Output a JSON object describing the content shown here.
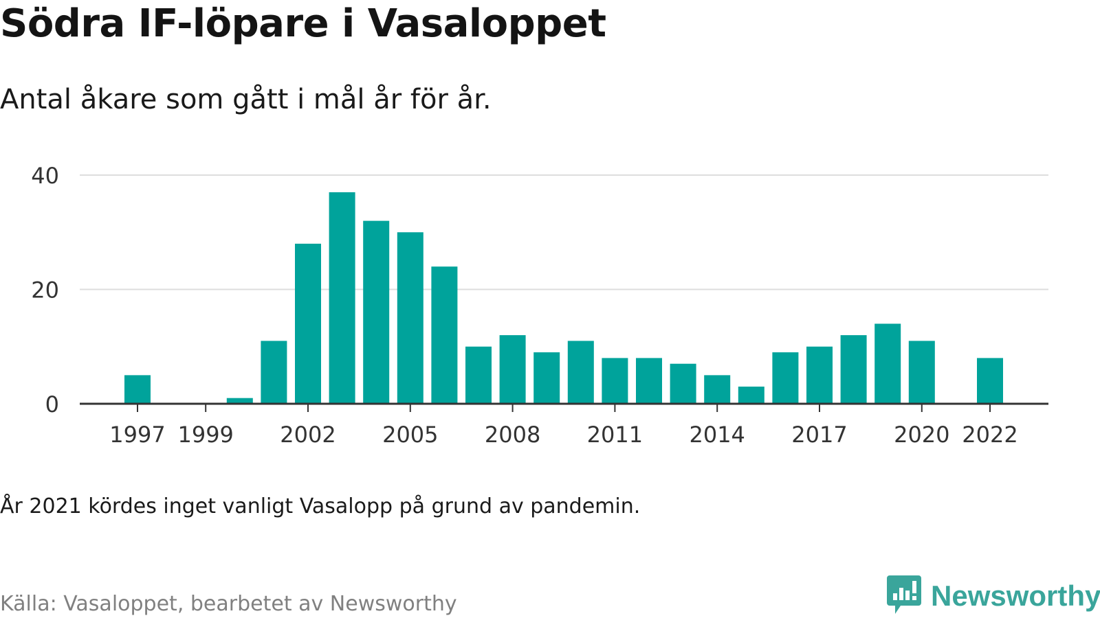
{
  "title": "Södra IF-löpare i Vasaloppet",
  "subtitle": "Antal åkare som gått i mål år för år.",
  "note": "År 2021 kördes inget vanligt Vasalopp på grund av pandemin.",
  "source": "Källa: Vasaloppet, bearbetet av Newsworthy",
  "brand": {
    "name": "Newsworthy",
    "icon": "newsworthy-logo-icon",
    "color": "#3aa59b"
  },
  "colors": {
    "bar": "#00a39b",
    "grid": "#dddddd",
    "axis": "#333333",
    "tick_text": "#333333"
  },
  "chart_data": {
    "type": "bar",
    "title": "Södra IF-löpare i Vasaloppet",
    "subtitle": "Antal åkare som gått i mål år för år.",
    "xlabel": "",
    "ylabel": "",
    "categories": [
      1997,
      1998,
      1999,
      2000,
      2001,
      2002,
      2003,
      2004,
      2005,
      2006,
      2007,
      2008,
      2009,
      2010,
      2011,
      2012,
      2013,
      2014,
      2015,
      2016,
      2017,
      2018,
      2019,
      2020,
      2021,
      2022
    ],
    "values": [
      5,
      0,
      0,
      1,
      11,
      28,
      37,
      32,
      30,
      24,
      10,
      12,
      9,
      11,
      8,
      8,
      7,
      5,
      3,
      9,
      10,
      12,
      14,
      11,
      null,
      8
    ],
    "x_ticks": [
      "1997",
      "1999",
      "2002",
      "2005",
      "2008",
      "2011",
      "2014",
      "2017",
      "2020",
      "2022"
    ],
    "y_ticks": [
      "0",
      "20",
      "40"
    ],
    "ylim": [
      0,
      40
    ],
    "grid": true,
    "legend": "none"
  }
}
